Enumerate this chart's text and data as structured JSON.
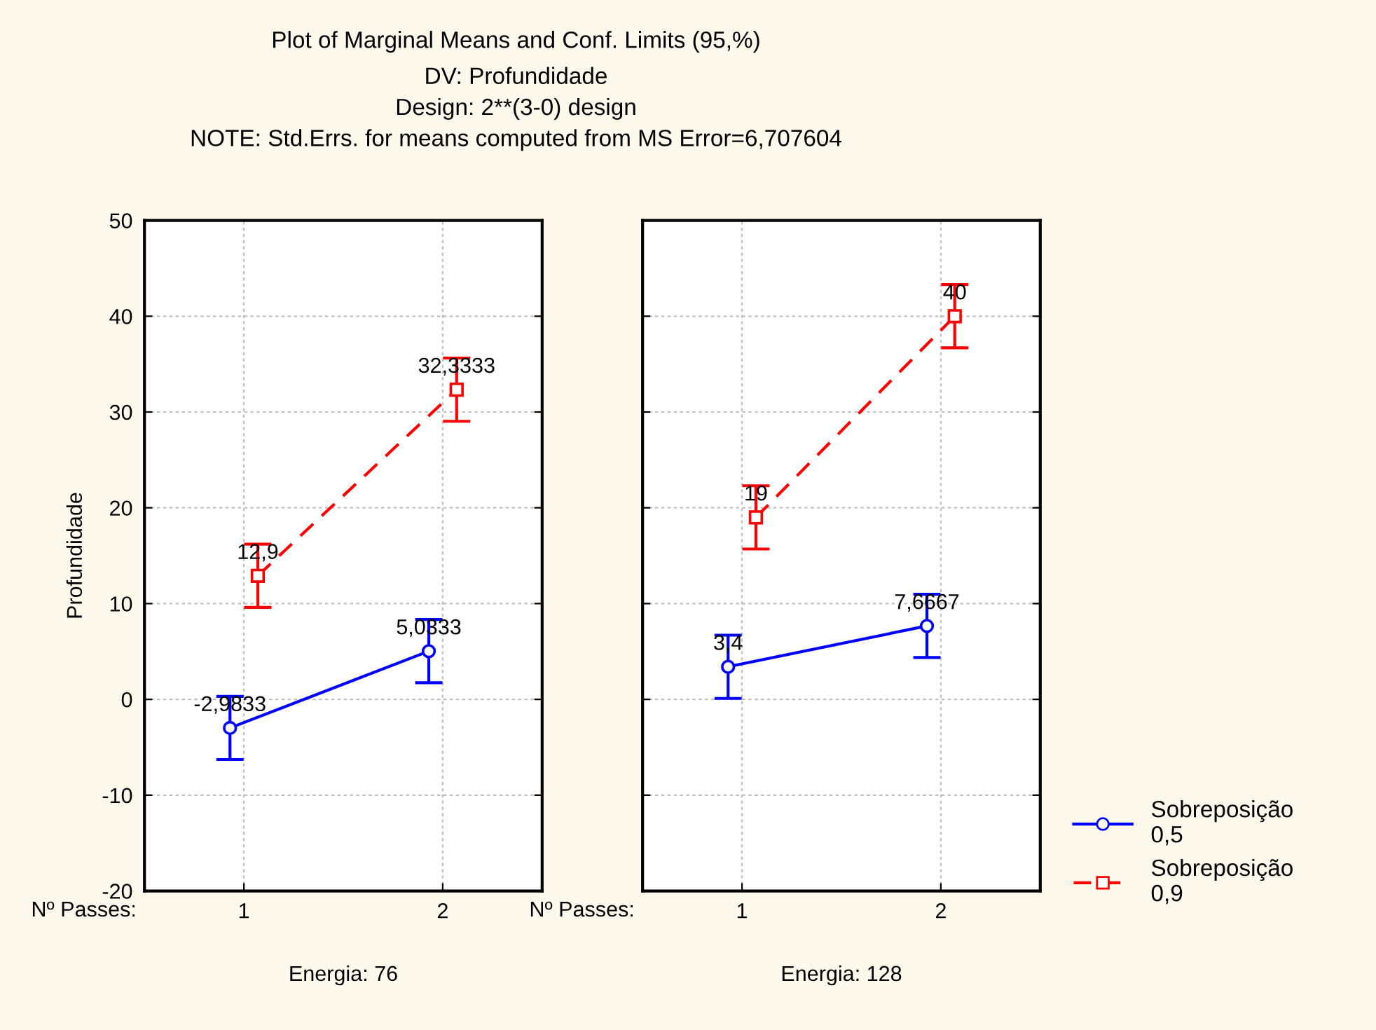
{
  "chart_data": [
    {
      "type": "line",
      "title": "Plot of Marginal Means and Conf. Limits (95,%)",
      "subtitle": "DV: Profundidade\nDesign: 2**(3-0) design\nNOTE: Std.Errs. for means computed from MS Error=6,707604",
      "categories": [
        "1",
        "2"
      ],
      "xlabel": "Energia: 76",
      "ylabel": "Profundidade",
      "annotations": [
        "Nº Passes:"
      ],
      "ylim": [
        -20,
        50
      ],
      "yticks": [
        -20,
        -10,
        0,
        10,
        20,
        30,
        40,
        50
      ],
      "grid": true,
      "series": [
        {
          "color": "#0000ff",
          "marker": "circle",
          "line_style": "solid",
          "values": [
            -2.9833,
            5.0333
          ],
          "errors": [
            3.3,
            3.3
          ],
          "value_labels": [
            "-2,9833",
            "5,0333"
          ]
        },
        {
          "color": "#ff0000",
          "marker": "square",
          "line_style": "dashed",
          "values": [
            12.9,
            32.3333
          ],
          "errors": [
            3.3,
            3.3
          ],
          "value_labels": [
            "12,9",
            "32,3333"
          ]
        }
      ]
    },
    {
      "type": "line",
      "categories": [
        "1",
        "2"
      ],
      "xlabel": "Energia: 128",
      "annotations": [
        "Nº Passes:"
      ],
      "ylim": [
        -20,
        50
      ],
      "yticks": [
        -20,
        -10,
        0,
        10,
        20,
        30,
        40,
        50
      ],
      "grid": true,
      "tick_labels": "x",
      "legend": "bottom right",
      "series": [
        {
          "name": "Sobreposição\n0,5",
          "color": "#0000ff",
          "marker": "circle",
          "line_style": "solid",
          "values": [
            3.4,
            7.6667
          ],
          "errors": [
            3.3,
            3.3
          ],
          "value_labels": [
            "3,4",
            "7,6667"
          ]
        },
        {
          "name": "Sobreposição\n0,9",
          "color": "#ff0000",
          "marker": "square",
          "line_style": "dashed",
          "values": [
            19,
            40
          ],
          "errors": [
            3.3,
            3.3
          ],
          "value_labels": [
            "19",
            "40"
          ]
        }
      ]
    }
  ]
}
